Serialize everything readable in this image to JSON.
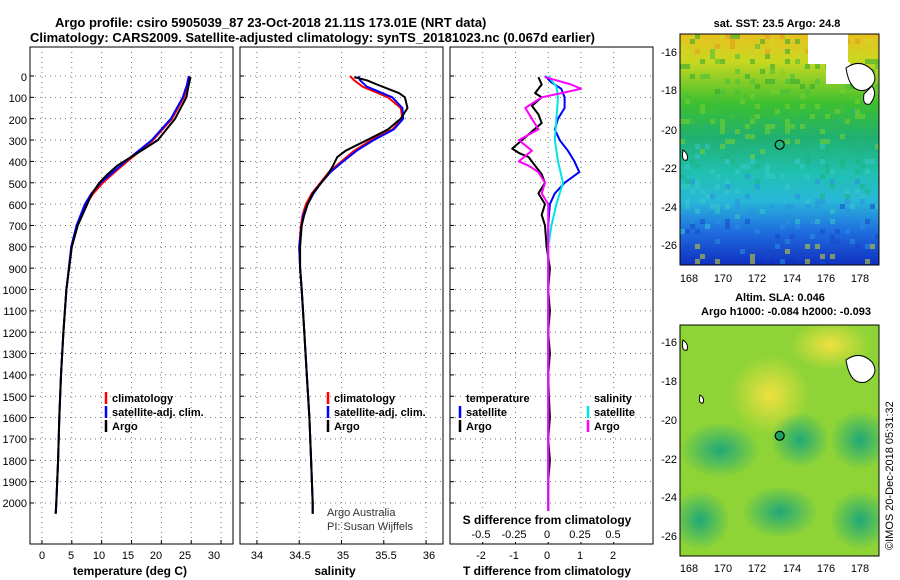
{
  "title_line1": "Argo profile: csiro 5905039_87 23-Oct-2018 21.11S 173.01E (NRT data)",
  "title_line2": "Climatology: CARS2009. Satellite-adjusted climatology: synTS_20181023.nc (0.067d earlier)",
  "colors": {
    "climatology": "#ff0000",
    "satellite": "#0000ff",
    "argo": "#000000",
    "sat_salinity": "#00e5e5",
    "argo_salinity": "#ff00ff"
  },
  "chart_data": [
    {
      "type": "line",
      "xlabel": "temperature (deg C)",
      "xlim": [
        -2,
        32
      ],
      "xticks": [
        0,
        5,
        10,
        15,
        20,
        25,
        30
      ],
      "ylim": [
        2100,
        0
      ],
      "yticks": [
        0,
        100,
        200,
        300,
        400,
        500,
        600,
        700,
        800,
        900,
        1000,
        1100,
        1200,
        1300,
        1400,
        1500,
        1600,
        1700,
        1800,
        1900,
        2000
      ],
      "legend": [
        "climatology",
        "satellite-adj. clim.",
        "Argo"
      ],
      "series": [
        {
          "name": "climatology",
          "color": "#ff0000",
          "depth": [
            0,
            40,
            100,
            200,
            300,
            350,
            400,
            450,
            500,
            550,
            600,
            700,
            800,
            1000,
            1200,
            1400,
            1600,
            1800,
            2000,
            2050
          ],
          "values": [
            24.7,
            24.4,
            23.8,
            21.8,
            18.6,
            16.5,
            14.3,
            12.2,
            10.2,
            8.6,
            7.4,
            5.9,
            5.0,
            4.1,
            3.6,
            3.2,
            2.9,
            2.7,
            2.4,
            2.3
          ]
        },
        {
          "name": "satellite-adj. clim.",
          "color": "#0000ff",
          "depth": [
            0,
            40,
            100,
            200,
            300,
            350,
            400,
            450,
            500,
            550,
            600,
            700,
            800,
            1000,
            1200,
            1400,
            1600,
            1800,
            2000,
            2050
          ],
          "values": [
            24.6,
            24.3,
            23.6,
            21.6,
            18.4,
            16.2,
            14.0,
            11.9,
            9.8,
            8.3,
            7.2,
            5.8,
            4.9,
            4.1,
            3.6,
            3.2,
            2.9,
            2.7,
            2.4,
            2.3
          ]
        },
        {
          "name": "Argo",
          "color": "#000000",
          "depth": [
            5,
            40,
            100,
            200,
            300,
            340,
            380,
            420,
            460,
            500,
            550,
            600,
            700,
            800,
            1000,
            1200,
            1400,
            1600,
            1800,
            2000,
            2050
          ],
          "values": [
            24.9,
            24.6,
            24.2,
            22.3,
            19.4,
            17.2,
            14.9,
            12.6,
            11.0,
            9.6,
            8.4,
            7.6,
            6.0,
            5.0,
            4.1,
            3.6,
            3.2,
            2.9,
            2.7,
            2.4,
            2.3
          ]
        }
      ]
    },
    {
      "type": "line",
      "xlabel": "salinity",
      "xlim": [
        33.8,
        36.2
      ],
      "xticks": [
        34,
        34.5,
        35,
        35.5,
        36
      ],
      "ylim": [
        2100,
        0
      ],
      "legend": [
        "climatology",
        "satellite-adj. clim.",
        "Argo"
      ],
      "series": [
        {
          "name": "climatology",
          "color": "#ff0000",
          "depth": [
            0,
            20,
            50,
            100,
            150,
            200,
            250,
            300,
            350,
            400,
            450,
            500,
            550,
            600,
            650,
            700,
            800,
            900,
            1000,
            1200,
            1400,
            1600,
            1800,
            2000,
            2050
          ],
          "values": [
            35.1,
            35.15,
            35.25,
            35.55,
            35.7,
            35.72,
            35.6,
            35.35,
            35.15,
            35.0,
            34.85,
            34.75,
            34.65,
            34.58,
            34.54,
            34.52,
            34.5,
            34.51,
            34.53,
            34.56,
            34.59,
            34.62,
            34.64,
            34.66,
            34.66
          ]
        },
        {
          "name": "satellite-adj. clim.",
          "color": "#0000ff",
          "depth": [
            0,
            20,
            50,
            100,
            150,
            200,
            250,
            300,
            350,
            400,
            450,
            500,
            550,
            600,
            650,
            700,
            800,
            900,
            1000,
            1200,
            1400,
            1600,
            1800,
            2000,
            2050
          ],
          "values": [
            35.2,
            35.22,
            35.3,
            35.6,
            35.72,
            35.73,
            35.62,
            35.38,
            35.18,
            35.02,
            34.87,
            34.76,
            34.67,
            34.6,
            34.55,
            34.53,
            34.5,
            34.51,
            34.53,
            34.56,
            34.59,
            34.62,
            34.64,
            34.66,
            34.66
          ]
        },
        {
          "name": "Argo",
          "color": "#000000",
          "depth": [
            5,
            20,
            40,
            60,
            80,
            100,
            150,
            200,
            250,
            300,
            350,
            380,
            420,
            460,
            500,
            550,
            600,
            650,
            700,
            800,
            900,
            1000,
            1200,
            1400,
            1600,
            1800,
            2000,
            2050
          ],
          "values": [
            35.15,
            35.3,
            35.42,
            35.55,
            35.68,
            35.75,
            35.78,
            35.7,
            35.55,
            35.3,
            35.05,
            34.95,
            34.9,
            34.84,
            34.76,
            34.66,
            34.6,
            34.56,
            34.53,
            34.51,
            34.51,
            34.53,
            34.56,
            34.59,
            34.62,
            34.64,
            34.66,
            34.66
          ]
        }
      ]
    },
    {
      "type": "line",
      "xlabel": "T difference from climatology",
      "xlabel_top": "S difference from climatology",
      "xlim": [
        -3,
        3.2
      ],
      "xticks": [
        -2,
        -1,
        0,
        1,
        2
      ],
      "xticks_s": [
        "-0.5",
        "-0.25",
        "0",
        "0.25",
        "0.5"
      ],
      "ylim": [
        2100,
        0
      ],
      "legend_temperature": [
        "temperature",
        "satellite",
        "Argo"
      ],
      "legend_salinity": [
        "salinity",
        "satellite",
        "Argo"
      ],
      "series": [
        {
          "name": "satellite",
          "color": "#0000ff",
          "depth": [
            0,
            30,
            60,
            100,
            150,
            200,
            250,
            300,
            350,
            400,
            450,
            500,
            550,
            600,
            700,
            800,
            1000,
            1500,
            2050
          ],
          "values": [
            -0.1,
            0.1,
            0.4,
            0.5,
            0.5,
            0.3,
            0.2,
            0.35,
            0.6,
            0.8,
            0.95,
            0.5,
            0.2,
            0.05,
            0.0,
            0.0,
            0.0,
            0.0,
            0.0
          ]
        },
        {
          "name": "Argo",
          "color": "#000000",
          "depth": [
            5,
            40,
            80,
            100,
            140,
            180,
            220,
            260,
            300,
            340,
            360,
            380,
            420,
            460,
            500,
            550,
            600,
            650,
            700,
            800,
            900,
            1000,
            1100,
            1200,
            1300,
            1400,
            1500,
            1600,
            1700,
            1800,
            1900,
            2000,
            2050
          ],
          "values": [
            -0.3,
            -0.2,
            -0.4,
            -0.2,
            -0.5,
            -0.3,
            -0.2,
            -0.5,
            -0.8,
            -1.1,
            -0.9,
            -0.6,
            -0.4,
            -0.2,
            -0.1,
            -0.3,
            -0.1,
            -0.2,
            -0.1,
            -0.05,
            0.05,
            0.0,
            0.05,
            0.0,
            0.05,
            0.0,
            0.02,
            0.05,
            0.0,
            0.05,
            0.0,
            0.0,
            0.0
          ]
        },
        {
          "name": "sat. salinity",
          "color": "#00e5e5",
          "depth": [
            0,
            50,
            100,
            200,
            300,
            400,
            500,
            600,
            700,
            800,
            1000,
            1500,
            2050
          ],
          "values": [
            0.0,
            0.25,
            0.3,
            0.25,
            0.2,
            0.3,
            0.45,
            0.25,
            0.1,
            0.0,
            0.0,
            0.0,
            0.0
          ]
        },
        {
          "name": "Argo salinity",
          "color": "#ff00ff",
          "depth": [
            5,
            40,
            60,
            80,
            100,
            150,
            200,
            250,
            300,
            350,
            400,
            420,
            450,
            500,
            550,
            600,
            700,
            800,
            900,
            1000,
            1500,
            2050
          ],
          "values": [
            -0.1,
            0.7,
            1.0,
            0.4,
            -0.2,
            -0.7,
            -0.5,
            -0.3,
            -0.9,
            -0.5,
            -0.9,
            -0.6,
            -0.3,
            -0.1,
            -0.2,
            0.0,
            0.0,
            0.0,
            0.0,
            0.0,
            0.0,
            0.0
          ]
        }
      ]
    }
  ],
  "labels": {
    "temp": {
      "legend": [
        "climatology",
        "satellite-adj. clim.",
        "Argo"
      ],
      "xlabel": "temperature (deg C)",
      "ticks": [
        "0",
        "5",
        "10",
        "15",
        "20",
        "25",
        "30"
      ]
    },
    "sal": {
      "legend": [
        "climatology",
        "satellite-adj. clim.",
        "Argo"
      ],
      "xlabel": "salinity",
      "ticks": [
        "34",
        "34.5",
        "35",
        "35.5",
        "36"
      ],
      "credit1": "Argo Australia",
      "credit2": "PI: Susan Wijffels"
    },
    "diff": {
      "t_head": "temperature",
      "t_sat": "satellite",
      "t_argo": "Argo",
      "s_head": "salinity",
      "s_sat": "satellite",
      "s_argo": "Argo",
      "xlabel": "T difference from climatology",
      "s_xlabel": "S difference from climatology",
      "t_ticks": [
        "-2",
        "-1",
        "0",
        "1",
        "2"
      ],
      "s_ticks": [
        "-0.5",
        "-0.25",
        "0",
        "0.25",
        "0.5"
      ]
    },
    "depth_ticks": [
      "0",
      "100",
      "200",
      "300",
      "400",
      "500",
      "600",
      "700",
      "800",
      "900",
      "1000",
      "1100",
      "1200",
      "1300",
      "1400",
      "1500",
      "1600",
      "1700",
      "1800",
      "1900",
      "2000"
    ]
  },
  "maps": {
    "sst": {
      "title": "sat. SST: 23.5 Argo: 24.8",
      "lat_ticks": [
        "-16",
        "-18",
        "-20",
        "-22",
        "-24",
        "-26"
      ],
      "lon_ticks": [
        "168",
        "170",
        "172",
        "174",
        "176",
        "178"
      ],
      "profile_lon": 173.01,
      "profile_lat": -21.11,
      "lon_range": [
        167.2,
        178.8
      ],
      "lat_range": [
        -27.2,
        -15.5
      ]
    },
    "sla": {
      "title1": "Altim. SLA: 0.046",
      "title2": "Argo h1000: -0.084 h2000: -0.093",
      "lat_ticks": [
        "-16",
        "-18",
        "-20",
        "-22",
        "-24",
        "-26"
      ],
      "lon_ticks": [
        "168",
        "170",
        "172",
        "174",
        "176",
        "178"
      ]
    }
  },
  "footer": "©IMOS 20-Dec-2018 05:31:32"
}
